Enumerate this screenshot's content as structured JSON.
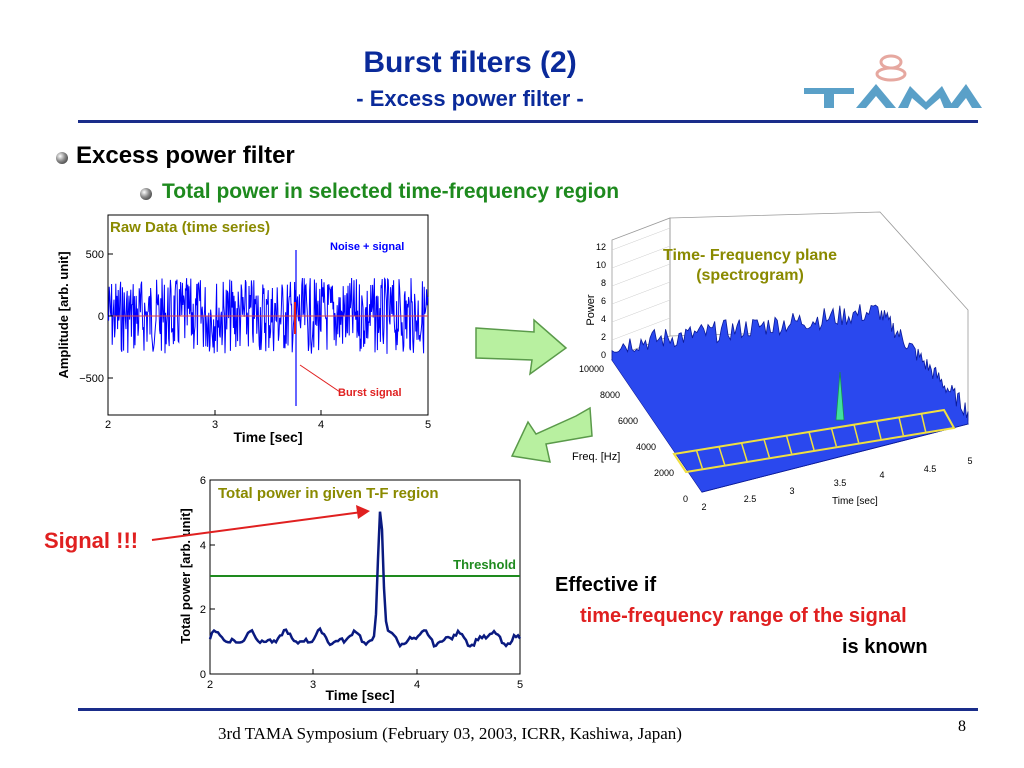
{
  "title": "Burst filters (2)",
  "subtitle": "- Excess power filter -",
  "logo_text": "TAMA",
  "bullet1": "Excess power filter",
  "bullet2": "Total power in selected time-frequency region",
  "raw_plot": {
    "title": "Raw Data (time series)",
    "xlabel": "Time  [sec]",
    "ylabel": "Amplitude  [arb. unit]",
    "xticks": [
      "2",
      "3",
      "4",
      "5"
    ],
    "yticks": [
      "500",
      "0",
      "−500"
    ],
    "annotation_noise": "Noise + signal",
    "annotation_burst": "Burst signal"
  },
  "tf_plot": {
    "title_line1": "Time- Frequency plane",
    "title_line2": "(spectrogram)",
    "power_label": "Power",
    "freq_label": "Freq. [Hz]",
    "time_label": "Time [sec]",
    "power_ticks": [
      "0",
      "2",
      "4",
      "6",
      "8",
      "10",
      "12"
    ],
    "freq_ticks": [
      "0",
      "2000",
      "4000",
      "6000",
      "8000",
      "10000"
    ],
    "time_ticks": [
      "2",
      "2.5",
      "3",
      "3.5",
      "4",
      "4.5",
      "5"
    ]
  },
  "power_plot": {
    "title": "Total power in given T-F region",
    "xlabel": "Time  [sec]",
    "ylabel": "Total power  [arb. unit]",
    "xticks": [
      "2",
      "3",
      "4",
      "5"
    ],
    "yticks": [
      "0",
      "2",
      "4",
      "6"
    ],
    "threshold_label": "Threshold"
  },
  "signal_label": "Signal !!!",
  "effective_line1": "Effective if",
  "effective_line2": "time-frequency range of the signal",
  "effective_line3": "is known",
  "footer": "3rd TAMA Symposium (February 03, 2003, ICRR, Kashiwa, Japan)",
  "page_number": "8",
  "colors": {
    "title": "#0a2a9a",
    "green_text": "#1e8a1e",
    "red_text": "#e02020",
    "noise_blue": "#0000ff",
    "plot_title_olive": "#8a8a00",
    "power_curve": "#0a1a80",
    "threshold": "#1e8a1e",
    "arrow_fill": "#b8f0a0"
  }
}
